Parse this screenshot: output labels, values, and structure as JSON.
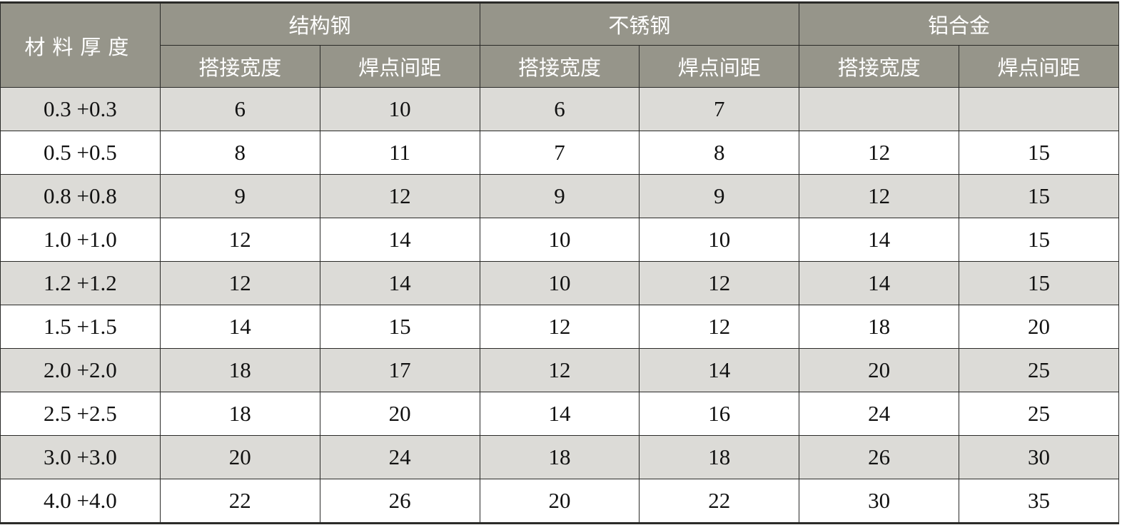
{
  "header": {
    "row_label": "材料厚度",
    "groups": [
      "结构钢",
      "不锈钢",
      "铝合金"
    ],
    "sub": [
      "搭接宽度",
      "焊点间距"
    ]
  },
  "rows": [
    {
      "thickness": "0.3 +0.3",
      "values": [
        "6",
        "10",
        "6",
        "7",
        "",
        ""
      ]
    },
    {
      "thickness": "0.5 +0.5",
      "values": [
        "8",
        "11",
        "7",
        "8",
        "12",
        "15"
      ]
    },
    {
      "thickness": "0.8 +0.8",
      "values": [
        "9",
        "12",
        "9",
        "9",
        "12",
        "15"
      ]
    },
    {
      "thickness": "1.0 +1.0",
      "values": [
        "12",
        "14",
        "10",
        "10",
        "14",
        "15"
      ]
    },
    {
      "thickness": "1.2 +1.2",
      "values": [
        "12",
        "14",
        "10",
        "12",
        "14",
        "15"
      ]
    },
    {
      "thickness": "1.5 +1.5",
      "values": [
        "14",
        "15",
        "12",
        "12",
        "18",
        "20"
      ]
    },
    {
      "thickness": "2.0 +2.0",
      "values": [
        "18",
        "17",
        "12",
        "14",
        "20",
        "25"
      ]
    },
    {
      "thickness": "2.5 +2.5",
      "values": [
        "18",
        "20",
        "14",
        "16",
        "24",
        "25"
      ]
    },
    {
      "thickness": "3.0 +3.0",
      "values": [
        "20",
        "24",
        "18",
        "18",
        "26",
        "30"
      ]
    },
    {
      "thickness": "4.0 +4.0",
      "values": [
        "22",
        "26",
        "20",
        "22",
        "30",
        "35"
      ]
    }
  ],
  "colors": {
    "header_bg": "#96958a",
    "alt_row_bg": "#dcdbd7",
    "border": "#2a2a28"
  }
}
